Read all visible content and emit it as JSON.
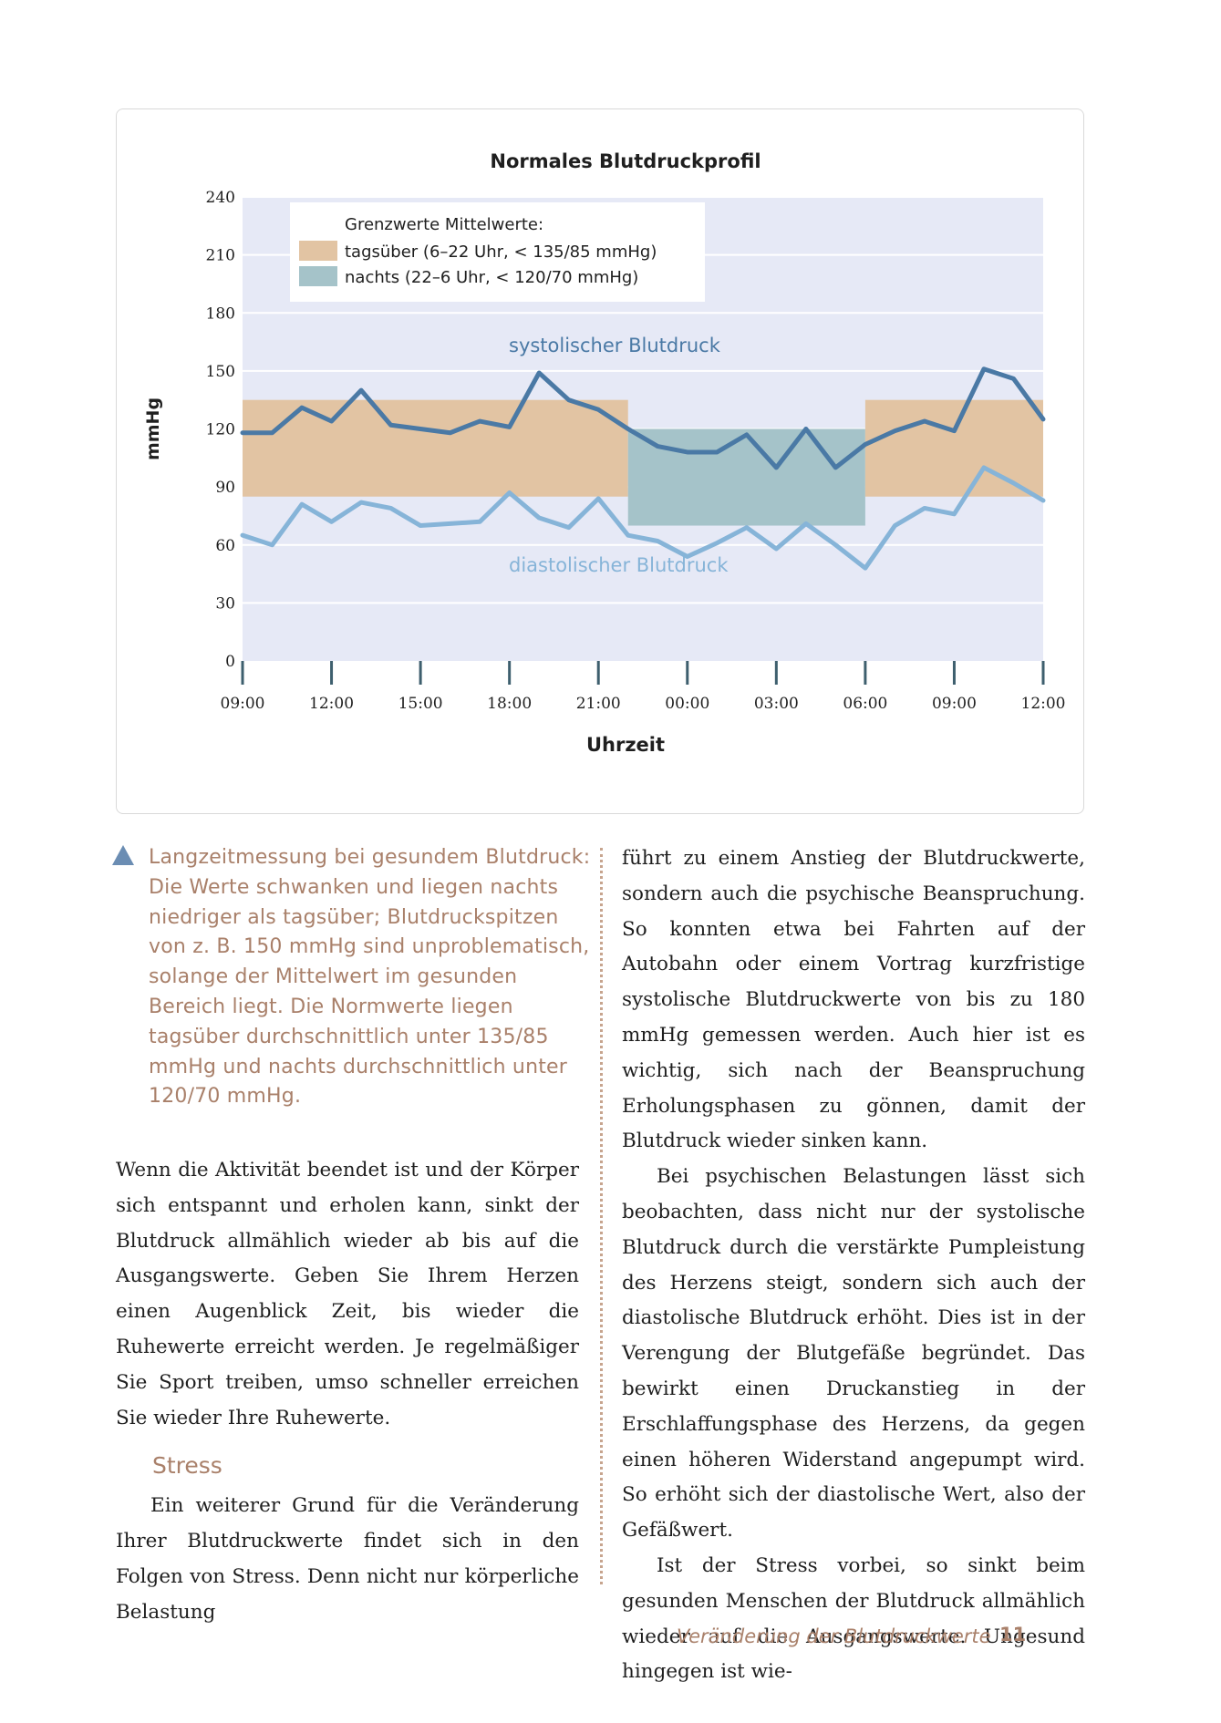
{
  "chart_data": {
    "type": "line",
    "title": "Normales Blutdruckprofil",
    "xlabel": "Uhrzeit",
    "ylabel": "mmHg",
    "ylim": [
      0,
      240
    ],
    "yticks": [
      "0",
      "30",
      "60",
      "90",
      "120",
      "150",
      "180",
      "210",
      "240"
    ],
    "xticks": [
      "09:00",
      "12:00",
      "15:00",
      "18:00",
      "21:00",
      "00:00",
      "03:00",
      "06:00",
      "09:00",
      "12:00"
    ],
    "grid": true,
    "legend": {
      "heading": "Grenzwerte Mittelwerte:",
      "items": [
        {
          "label": "tagsüber (6–22 Uhr, < 135/85 mmHg)",
          "color": "#e2c4a3"
        },
        {
          "label": "nachts (22–6 Uhr, < 120/70 mmHg)",
          "color": "#a5c3c9"
        }
      ]
    },
    "bands": [
      {
        "name": "tagsüber",
        "x": [
          0,
          13
        ],
        "y": [
          85,
          135
        ],
        "color": "#e2c4a3"
      },
      {
        "name": "nachts",
        "x": [
          13,
          21
        ],
        "y": [
          70,
          120
        ],
        "color": "#a5c3c9"
      },
      {
        "name": "tagsüber",
        "x": [
          21,
          27
        ],
        "y": [
          85,
          135
        ],
        "color": "#e2c4a3"
      }
    ],
    "series": [
      {
        "name": "systolischer Blutdruck",
        "color": "#4a79a5",
        "values": [
          118,
          118,
          131,
          124,
          140,
          122,
          120,
          118,
          124,
          121,
          149,
          135,
          130,
          120,
          111,
          108,
          108,
          117,
          100,
          120,
          100,
          112,
          119,
          124,
          119,
          151,
          146,
          125
        ]
      },
      {
        "name": "diastolischer Blutdruck",
        "color": "#86b4d8",
        "values": [
          65,
          60,
          81,
          72,
          82,
          79,
          70,
          71,
          72,
          87,
          74,
          69,
          84,
          65,
          62,
          54,
          61,
          69,
          58,
          71,
          60,
          48,
          70,
          79,
          76,
          100,
          92,
          83
        ]
      }
    ]
  },
  "caption": "Langzeitmessung bei gesundem Blutdruck: Die Werte schwanken und liegen nachts niedriger als tagsüber; Blutdruckspitzen von z. B. 150 mmHg sind unproblematisch, solange der Mittelwert im gesunden Bereich liegt. Die Normwerte liegen tagsüber durchschnittlich unter 135/85 mmHg und nachts durchschnittlich unter 120/70 mmHg.",
  "left_column": {
    "paragraph1": "Wenn die Aktivität beendet ist und der Körper sich entspannt und erholen kann, sinkt der Blutdruck allmählich wieder ab bis auf die Ausgangswerte. Geben Sie Ihrem Herzen einen Augenblick Zeit, bis wieder die Ruhewerte erreicht werden. Je regelmäßiger Sie Sport treiben, umso schneller erreichen Sie wieder Ihre Ruhewerte.",
    "heading": "Stress",
    "paragraph2": "Ein weiterer Grund für die Veränderung Ihrer Blutdruckwerte findet sich in den Folgen von Stress. Denn nicht nur körperliche Belastung"
  },
  "right_column": {
    "paragraph1": "führt zu einem Anstieg der Blutdruckwerte, sondern auch die psychische Beanspruchung. So konnten etwa bei Fahrten auf der Autobahn oder einem Vortrag kurzfristige systolische Blutdruckwerte von bis zu 180 mmHg gemessen werden. Auch hier ist es wichtig, sich nach der Beanspruchung Erholungsphasen zu gönnen, damit der Blutdruck wieder sinken kann.",
    "paragraph2": "Bei psychischen Belastungen lässt sich beobachten, dass nicht nur der systolische Blutdruck durch die verstärkte Pumpleistung des Herzens steigt, sondern sich auch der diastolische Blutdruck erhöht. Dies ist in der Verengung der Blutgefäße begründet. Das bewirkt einen Druckanstieg in der Erschlaffungsphase des Herzens, da gegen einen höheren Widerstand angepumpt wird. So erhöht sich der diastolische Wert, also der Gefäßwert.",
    "paragraph3": "Ist der Stress vorbei, so sinkt beim gesunden Menschen der Blutdruck allmählich wieder auf die Ausgangswerte. Ungesund hingegen ist wie-"
  },
  "footer": {
    "title": "Veränderung der Blutdruckwerte",
    "page": "11"
  }
}
